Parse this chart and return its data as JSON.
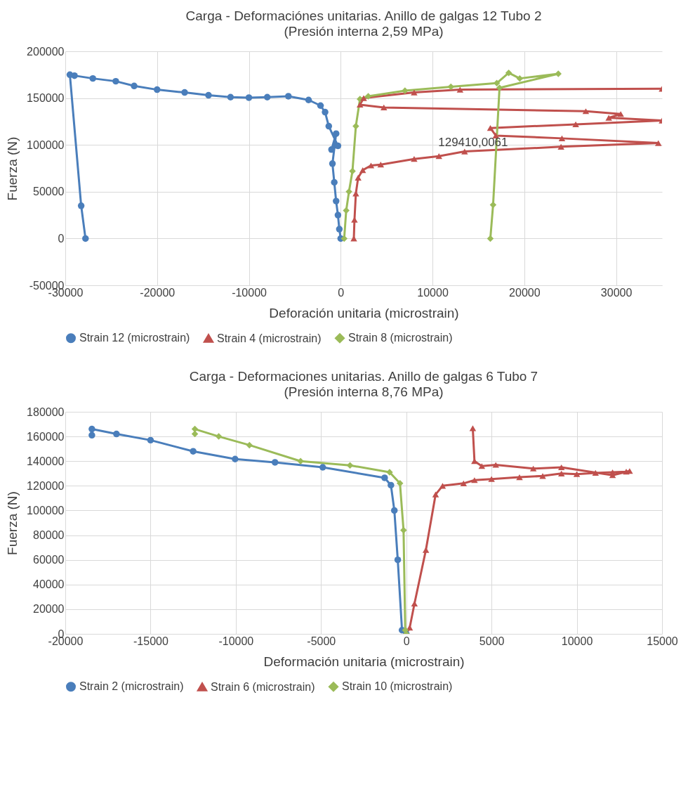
{
  "chart_data": [
    {
      "type": "line",
      "title": "Carga - Deformaciónes unitarias. Anillo de galgas 12  Tubo 2",
      "subtitle": "(Presión interna 2,59 MPa)",
      "xlabel": "Deforación unitaria (microstrain)",
      "ylabel": "Fuerza (N)",
      "xlim": [
        -30000,
        35000
      ],
      "xticks": [
        -30000,
        -20000,
        -10000,
        0,
        10000,
        20000,
        30000
      ],
      "ylim": [
        -50000,
        200000
      ],
      "yticks": [
        -50000,
        0,
        50000,
        100000,
        150000,
        200000
      ],
      "grid": true,
      "legend": "bottom",
      "annotations": [
        "129410,0061"
      ],
      "series": [
        {
          "name": "Strain 12 (microstrain)",
          "color": "#4a7ebb",
          "marker": "circle",
          "x": [
            0,
            -150,
            -300,
            -500,
            -700,
            -900,
            -500,
            -1000,
            -300,
            -1300,
            -1700,
            -2200,
            -3500,
            -5700,
            -8000,
            -10000,
            -12000,
            -14400,
            -17000,
            -20000,
            -22500,
            -24500,
            -27000,
            -29000,
            -29500,
            -28270,
            -27800
          ],
          "values": [
            0,
            10000,
            25000,
            40000,
            60000,
            80000,
            112000,
            95000,
            99000,
            120000,
            135000,
            142000,
            148000,
            152000,
            151000,
            150500,
            151000,
            153000,
            156000,
            159000,
            163000,
            168000,
            171000,
            174000,
            175000,
            35000,
            0
          ]
        },
        {
          "name": "Strain 4 (microstrain)",
          "color": "#c0504d",
          "marker": "triangle",
          "x": [
            1430,
            1500,
            1650,
            1900,
            2400,
            3300,
            4360,
            8000,
            10700,
            13500,
            24000,
            34600,
            24100,
            16900,
            16300,
            25600,
            35000,
            29200,
            30500,
            26700,
            4700,
            2100,
            2500,
            8000,
            13000,
            35000
          ],
          "values": [
            0,
            20000,
            48000,
            65000,
            73000,
            78000,
            79000,
            85000,
            88000,
            93000,
            98000,
            102000,
            107000,
            110000,
            118000,
            122000,
            126000,
            129000,
            133000,
            136000,
            140000,
            143000,
            150000,
            156000,
            159000,
            160000
          ]
        },
        {
          "name": "Strain 8 (microstrain)",
          "color": "#9bbb59",
          "marker": "diamond",
          "x": [
            380,
            600,
            900,
            1280,
            1650,
            2100,
            3000,
            7000,
            12000,
            17000,
            18300,
            19500,
            23700,
            17300,
            16600,
            16300
          ],
          "values": [
            0,
            30000,
            50000,
            72000,
            120000,
            149000,
            152000,
            158000,
            162000,
            166000,
            177000,
            171000,
            176000,
            161000,
            36000,
            0
          ]
        }
      ]
    },
    {
      "type": "line",
      "title": "Carga - Deformaciones unitarias. Anillo de galgas 6  Tubo 7",
      "subtitle": "(Presión interna 8,76 MPa)",
      "xlabel": "Deformación unitaria (microstrain)",
      "ylabel": "Fuerza (N)",
      "xlim": [
        -20000,
        15000
      ],
      "xticks": [
        -20000,
        -15000,
        -10000,
        -5000,
        0,
        5000,
        10000,
        15000
      ],
      "ylim": [
        0,
        180000
      ],
      "yticks": [
        0,
        20000,
        40000,
        60000,
        80000,
        100000,
        120000,
        140000,
        160000,
        180000
      ],
      "grid": true,
      "legend": "bottom",
      "series": [
        {
          "name": "Strain 2 (microstrain)",
          "color": "#4a7ebb",
          "marker": "circle",
          "x": [
            0,
            -250,
            -500,
            -700,
            -900,
            -1270,
            -4900,
            -7700,
            -10040,
            -12500,
            -15000,
            -17000,
            -18440,
            -18440
          ],
          "values": [
            0,
            3000,
            60000,
            100000,
            120500,
            126500,
            135000,
            139000,
            141700,
            148000,
            157000,
            162000,
            166000,
            161000
          ]
        },
        {
          "name": "Strain 6 (microstrain)",
          "color": "#c0504d",
          "marker": "triangle",
          "x": [
            0,
            200,
            480,
            1150,
            1720,
            2130,
            3360,
            4000,
            5000,
            6640,
            8000,
            9100,
            10000,
            11100,
            12100,
            12900,
            13100,
            12100,
            9100,
            7450,
            5250,
            4430,
            4000,
            3900
          ],
          "values": [
            0,
            5000,
            24500,
            68000,
            113000,
            120000,
            122000,
            124600,
            125500,
            127000,
            128000,
            130000,
            129500,
            130500,
            131000,
            131500,
            132000,
            128600,
            135000,
            134000,
            137000,
            136000,
            140000,
            166700
          ]
        },
        {
          "name": "Strain 10 (microstrain)",
          "color": "#9bbb59",
          "marker": "diamond",
          "x": [
            0,
            -60,
            -160,
            -370,
            -980,
            -3300,
            -6200,
            -9200,
            -11000,
            -12400,
            -12400
          ],
          "values": [
            0,
            3000,
            84000,
            122000,
            131000,
            136600,
            140000,
            153000,
            160000,
            166000,
            162000
          ]
        }
      ]
    }
  ]
}
